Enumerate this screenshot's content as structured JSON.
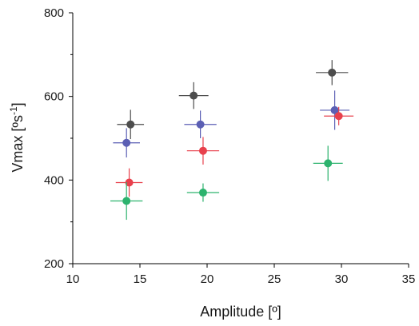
{
  "chart_data": {
    "type": "scatter",
    "xlabel": "Amplitude [º]",
    "ylabel_main": "Vmax [ºs",
    "ylabel_sup": "-1",
    "ylabel_end": "]",
    "xlim": [
      10,
      35
    ],
    "ylim": [
      200,
      800
    ],
    "x_ticks": [
      10,
      15,
      20,
      25,
      30,
      35
    ],
    "y_ticks": [
      200,
      400,
      600,
      800
    ],
    "y_minor_ticks": [
      300,
      500,
      700
    ],
    "grid": false,
    "error_bars": true,
    "series": [
      {
        "color": "#4d4d4d",
        "points": [
          {
            "x": 14.3,
            "y": 533,
            "xerr": 1.0,
            "yerr": 35
          },
          {
            "x": 19.0,
            "y": 602,
            "xerr": 1.1,
            "yerr": 32
          },
          {
            "x": 29.3,
            "y": 657,
            "xerr": 1.2,
            "yerr": 30
          }
        ]
      },
      {
        "color": "#5b5fb4",
        "points": [
          {
            "x": 14.0,
            "y": 489,
            "xerr": 1.0,
            "yerr": 35
          },
          {
            "x": 19.5,
            "y": 533,
            "xerr": 1.2,
            "yerr": 33
          },
          {
            "x": 29.5,
            "y": 567,
            "xerr": 1.1,
            "yerr": 47
          }
        ]
      },
      {
        "color": "#e8404c",
        "points": [
          {
            "x": 14.2,
            "y": 394,
            "xerr": 1.0,
            "yerr": 34
          },
          {
            "x": 19.7,
            "y": 470,
            "xerr": 1.2,
            "yerr": 33
          },
          {
            "x": 29.8,
            "y": 553,
            "xerr": 1.1,
            "yerr": 22
          }
        ]
      },
      {
        "color": "#2db36e",
        "points": [
          {
            "x": 14.0,
            "y": 350,
            "xerr": 1.2,
            "yerr": 45
          },
          {
            "x": 19.7,
            "y": 370,
            "xerr": 1.2,
            "yerr": 22
          },
          {
            "x": 29.0,
            "y": 440,
            "xerr": 1.1,
            "yerr": 42
          }
        ]
      }
    ]
  }
}
